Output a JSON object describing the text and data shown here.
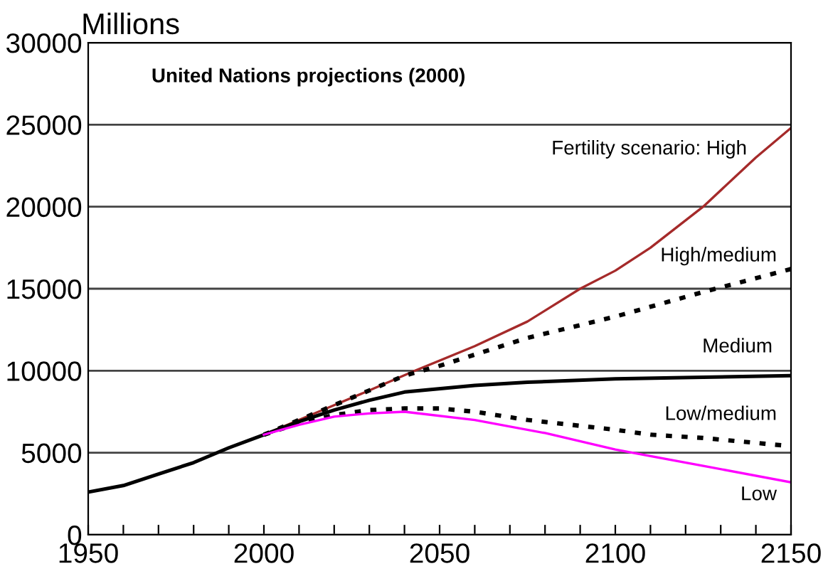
{
  "chart_data": {
    "type": "line",
    "ylabel": "Millions",
    "xlim": [
      1950,
      2150
    ],
    "ylim": [
      0,
      30000
    ],
    "xticks": [
      1950,
      {
        "value": 1960,
        "label": null
      },
      {
        "value": 1970,
        "label": null
      },
      {
        "value": 1980,
        "label": null
      },
      {
        "value": 1990,
        "label": null
      },
      2000,
      {
        "value": 2010,
        "label": null
      },
      {
        "value": 2020,
        "label": null
      },
      {
        "value": 2030,
        "label": null
      },
      {
        "value": 2040,
        "label": null
      },
      2050,
      {
        "value": 2060,
        "label": null
      },
      {
        "value": 2070,
        "label": null
      },
      {
        "value": 2080,
        "label": null
      },
      {
        "value": 2090,
        "label": null
      },
      2100,
      {
        "value": 2110,
        "label": null
      },
      {
        "value": 2120,
        "label": null
      },
      {
        "value": 2130,
        "label": null
      },
      {
        "value": 2140,
        "label": null
      },
      2150
    ],
    "yticks": [
      0,
      5000,
      10000,
      15000,
      20000,
      25000,
      30000
    ],
    "grid": "y",
    "legend": false,
    "series": [
      {
        "name": "Fertility scenario: High",
        "color": "#a52a2a",
        "line_style": "solid",
        "x": [
          2000,
          2010,
          2020,
          2030,
          2043,
          2060,
          2075,
          2090,
          2100,
          2110,
          2125,
          2140,
          2150
        ],
        "values": [
          6100,
          7000,
          7900,
          8800,
          10000,
          11500,
          13000,
          15000,
          16100,
          17500,
          20000,
          23000,
          24800
        ]
      },
      {
        "name": "High/medium",
        "color": "#000000",
        "line_style": "dotted",
        "x": [
          2000,
          2010,
          2020,
          2030,
          2040,
          2050,
          2075,
          2100,
          2125,
          2150
        ],
        "values": [
          6100,
          7000,
          7900,
          8800,
          9700,
          10300,
          12000,
          13300,
          14800,
          16200
        ]
      },
      {
        "name": "Medium",
        "color": "#000000",
        "line_style": "solid",
        "x": [
          1950,
          1960,
          1970,
          1980,
          1990,
          2000,
          2010,
          2020,
          2030,
          2040,
          2060,
          2075,
          2100,
          2125,
          2150
        ],
        "values": [
          2600,
          3000,
          3700,
          4400,
          5300,
          6100,
          6900,
          7600,
          8200,
          8700,
          9100,
          9300,
          9500,
          9600,
          9700
        ]
      },
      {
        "name": "Low/medium",
        "color": "#000000",
        "line_style": "dotted",
        "x": [
          2000,
          2010,
          2020,
          2030,
          2040,
          2050,
          2060,
          2075,
          2100,
          2110,
          2125,
          2150
        ],
        "values": [
          6100,
          6800,
          7300,
          7600,
          7700,
          7700,
          7500,
          7000,
          6400,
          6100,
          5900,
          5400
        ]
      },
      {
        "name": "Low",
        "color": "#ff00ff",
        "line_style": "solid",
        "x": [
          2000,
          2010,
          2020,
          2030,
          2040,
          2060,
          2080,
          2100,
          2110,
          2125,
          2150
        ],
        "values": [
          6100,
          6700,
          7200,
          7400,
          7500,
          7000,
          6200,
          5200,
          4800,
          4200,
          3200
        ]
      }
    ],
    "annotations": [
      "United Nations projections (2000)"
    ]
  }
}
